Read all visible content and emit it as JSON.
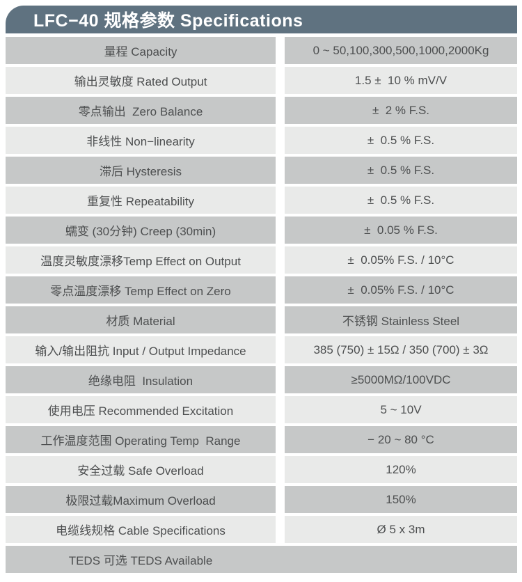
{
  "page": {
    "title": "LFC−40 规格参数 Specifications"
  },
  "colors": {
    "header_bg": "#5f7280",
    "row_dark": "#c6c8c8",
    "row_light": "#e9eae9",
    "text": "#4d4f50",
    "header_text": "#ffffff",
    "page_bg": "#ffffff"
  },
  "table": {
    "rows": [
      {
        "label": "量程 Capacity",
        "value": "0 ~ 50,100,300,500,1000,2000Kg",
        "shade": "dark"
      },
      {
        "label": "输出灵敏度 Rated Output",
        "value": "1.5 ±  10 % mV/V",
        "shade": "light"
      },
      {
        "label": "零点输出  Zero Balance",
        "value": "±  2 % F.S.",
        "shade": "dark"
      },
      {
        "label": "非线性 Non−linearity",
        "value": "±  0.5 % F.S.",
        "shade": "light"
      },
      {
        "label": "滞后 Hysteresis",
        "value": "±  0.5 % F.S.",
        "shade": "dark"
      },
      {
        "label": "重复性 Repeatability",
        "value": "±  0.5 % F.S.",
        "shade": "light"
      },
      {
        "label": "蠕变 (30分钟) Creep (30min)",
        "value": "±  0.05 % F.S.",
        "shade": "dark"
      },
      {
        "label": "温度灵敏度漂移Temp Effect on Output",
        "value": "±  0.05% F.S. / 10°C",
        "shade": "light"
      },
      {
        "label": "零点温度漂移 Temp Effect on Zero",
        "value": "±  0.05% F.S. / 10°C",
        "shade": "dark"
      },
      {
        "label": "材质 Material",
        "value": "不锈钢 Stainless Steel",
        "shade": "dark"
      },
      {
        "label": "输入/输出阻抗 Input / Output Impedance",
        "value": "385 (750) ± 15Ω / 350 (700) ± 3Ω",
        "shade": "light"
      },
      {
        "label": "绝缘电阻  Insulation",
        "value": "≥5000MΩ/100VDC",
        "shade": "dark"
      },
      {
        "label": "使用电压 Recommended Excitation",
        "value": "5 ~ 10V",
        "shade": "light"
      },
      {
        "label": "工作温度范围 Operating Temp  Range",
        "value": "− 20 ~ 80 °C",
        "shade": "dark"
      },
      {
        "label": "安全过载 Safe Overload",
        "value": "120%",
        "shade": "light"
      },
      {
        "label": "极限过载Maximum Overload",
        "value": "150%",
        "shade": "dark"
      },
      {
        "label": "电缆线规格 Cable Specifications",
        "value": "Ø 5 x 3m",
        "shade": "light"
      },
      {
        "label": "TEDS 可选 TEDS Available",
        "value": "",
        "shade": "dark",
        "full_width": true
      }
    ]
  }
}
